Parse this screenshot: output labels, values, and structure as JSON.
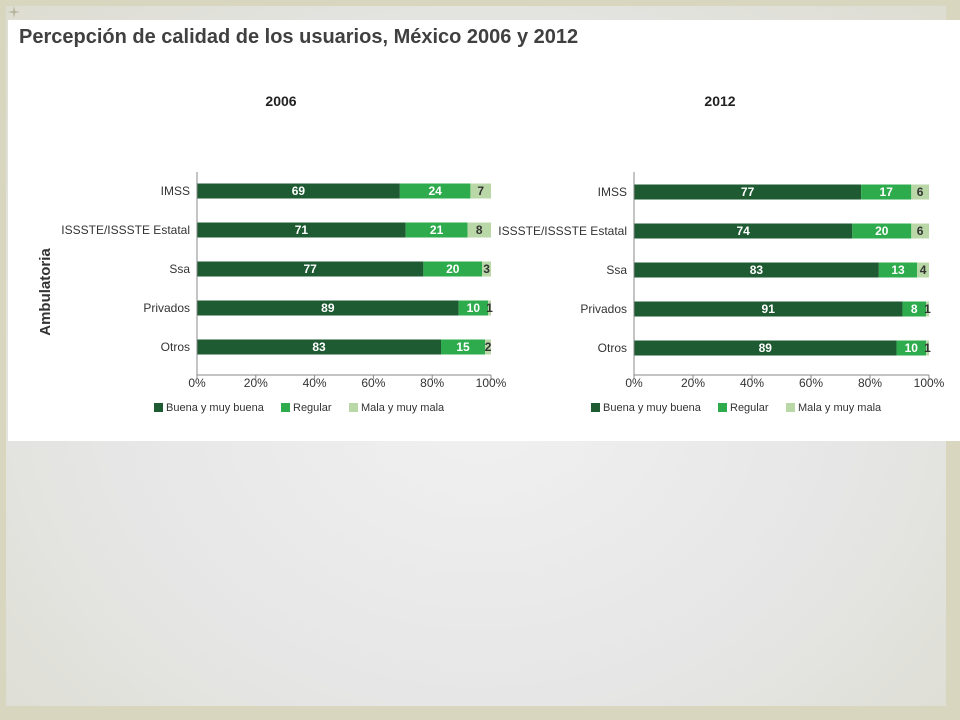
{
  "title": "Percepción de calidad de los usuarios, México 2006 y 2012",
  "y_axis_title": "Ambulatoria",
  "colors": {
    "buena": "#1e5b32",
    "regular": "#2eab4d",
    "mala": "#b9d7a7",
    "slide_background": "#e6e6e6",
    "panel_background": "#ffffff"
  },
  "chart_data": [
    {
      "type": "bar",
      "orientation": "horizontal",
      "stacked": true,
      "title": "2006",
      "categories": [
        "IMSS",
        "ISSSTE/ISSSTE Estatal",
        "Ssa",
        "Privados",
        "Otros"
      ],
      "series": [
        {
          "name": "Buena y muy buena",
          "values": [
            69,
            71,
            77,
            89,
            83
          ]
        },
        {
          "name": "Regular",
          "values": [
            24,
            21,
            20,
            10,
            15
          ]
        },
        {
          "name": "Mala y muy mala",
          "values": [
            7,
            8,
            3,
            1,
            2
          ]
        }
      ],
      "xlim": [
        0,
        100
      ],
      "xticks": [
        "0%",
        "20%",
        "40%",
        "60%",
        "80%",
        "100%"
      ],
      "legend_position": "bottom",
      "grid": false
    },
    {
      "type": "bar",
      "orientation": "horizontal",
      "stacked": true,
      "title": "2012",
      "categories": [
        "IMSS",
        "ISSSTE/ISSSTE Estatal",
        "Ssa",
        "Privados",
        "Otros"
      ],
      "series": [
        {
          "name": "Buena y muy buena",
          "values": [
            77,
            74,
            83,
            91,
            89
          ]
        },
        {
          "name": "Regular",
          "values": [
            17,
            20,
            13,
            8,
            10
          ]
        },
        {
          "name": "Mala y muy mala",
          "values": [
            6,
            6,
            4,
            1,
            1
          ]
        }
      ],
      "xlim": [
        0,
        100
      ],
      "xticks": [
        "0%",
        "20%",
        "40%",
        "60%",
        "80%",
        "100%"
      ],
      "legend_position": "bottom",
      "grid": false
    }
  ]
}
